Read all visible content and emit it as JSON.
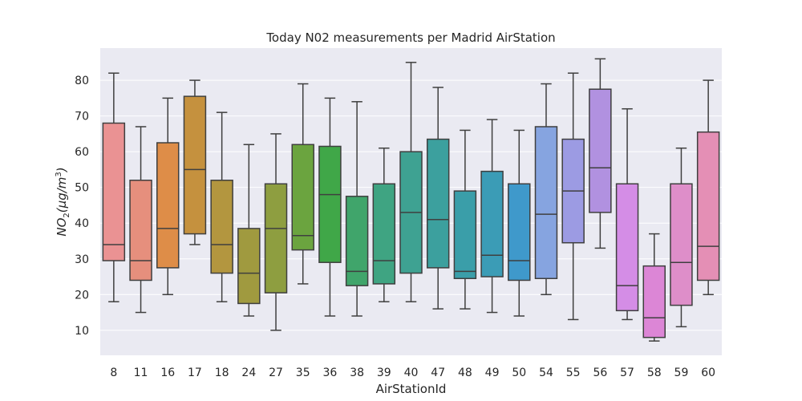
{
  "chart_data": {
    "type": "box",
    "title": "Today N02 measurements per Madrid AirStation",
    "xlabel": "AirStationId",
    "ylabel_base": "NO",
    "ylabel_sub": "2",
    "ylabel_rest": "(μg/m",
    "ylabel_sup": "3",
    "ylabel_close": ")",
    "ylim": [
      3,
      89
    ],
    "yticks": [
      10,
      20,
      30,
      40,
      50,
      60,
      70,
      80
    ],
    "grid": true,
    "legend": "none",
    "background": "#eaeaf2",
    "categories": [
      "8",
      "11",
      "16",
      "17",
      "18",
      "24",
      "27",
      "35",
      "36",
      "38",
      "39",
      "40",
      "47",
      "48",
      "49",
      "50",
      "54",
      "55",
      "56",
      "57",
      "58",
      "59",
      "60"
    ],
    "boxes": [
      {
        "min": 18,
        "q1": 29.5,
        "median": 34,
        "q3": 68,
        "max": 82,
        "color": "#ea9293"
      },
      {
        "min": 15,
        "q1": 24,
        "median": 29.5,
        "q3": 52,
        "max": 67,
        "color": "#e68f7d"
      },
      {
        "min": 20,
        "q1": 27.5,
        "median": 38.5,
        "q3": 62.5,
        "max": 75,
        "color": "#de8d48"
      },
      {
        "min": 34,
        "q1": 37,
        "median": 55,
        "q3": 75.5,
        "max": 80,
        "color": "#c5913e"
      },
      {
        "min": 18,
        "q1": 26,
        "median": 34,
        "q3": 52,
        "max": 71,
        "color": "#b3963f"
      },
      {
        "min": 14,
        "q1": 17.5,
        "median": 26,
        "q3": 38.5,
        "max": 62,
        "color": "#a09a3f"
      },
      {
        "min": 10,
        "q1": 20.5,
        "median": 38.5,
        "q3": 51,
        "max": 65,
        "color": "#8e9e40"
      },
      {
        "min": 23,
        "q1": 32.5,
        "median": 36.5,
        "q3": 62,
        "max": 79,
        "color": "#6ba43f"
      },
      {
        "min": 14,
        "q1": 29,
        "median": 48,
        "q3": 61.5,
        "max": 75,
        "color": "#40a748"
      },
      {
        "min": 14,
        "q1": 22.5,
        "median": 26.5,
        "q3": 47.5,
        "max": 74,
        "color": "#40a56b"
      },
      {
        "min": 18,
        "q1": 23,
        "median": 29.5,
        "q3": 51,
        "max": 61,
        "color": "#3fa482"
      },
      {
        "min": 18,
        "q1": 26,
        "median": 43,
        "q3": 60,
        "max": 85,
        "color": "#3ea292"
      },
      {
        "min": 16,
        "q1": 27.5,
        "median": 41,
        "q3": 63.5,
        "max": 78,
        "color": "#3ca09e"
      },
      {
        "min": 16,
        "q1": 24.5,
        "median": 26.5,
        "q3": 49,
        "max": 66,
        "color": "#3a9ea9"
      },
      {
        "min": 15,
        "q1": 25,
        "median": 31,
        "q3": 54.5,
        "max": 69,
        "color": "#3b9cb6"
      },
      {
        "min": 14,
        "q1": 24,
        "median": 29.5,
        "q3": 51,
        "max": 66,
        "color": "#3f99cb"
      },
      {
        "min": 20,
        "q1": 24.5,
        "median": 42.5,
        "q3": 67,
        "max": 79,
        "color": "#86a4e0"
      },
      {
        "min": 13,
        "q1": 34.5,
        "median": 49,
        "q3": 63.5,
        "max": 82,
        "color": "#9c9be3"
      },
      {
        "min": 33,
        "q1": 43,
        "median": 55.5,
        "q3": 77.5,
        "max": 86,
        "color": "#b191e0"
      },
      {
        "min": 13,
        "q1": 15.5,
        "median": 22.5,
        "q3": 51,
        "max": 72,
        "color": "#d48de6"
      },
      {
        "min": 7,
        "q1": 8,
        "median": 13.5,
        "q3": 28,
        "max": 37,
        "color": "#dc86d6"
      },
      {
        "min": 11,
        "q1": 17,
        "median": 29,
        "q3": 51,
        "max": 61,
        "color": "#de8ec9"
      },
      {
        "min": 20,
        "q1": 24,
        "median": 33.5,
        "q3": 65.5,
        "max": 80,
        "color": "#e48fb5"
      }
    ]
  }
}
